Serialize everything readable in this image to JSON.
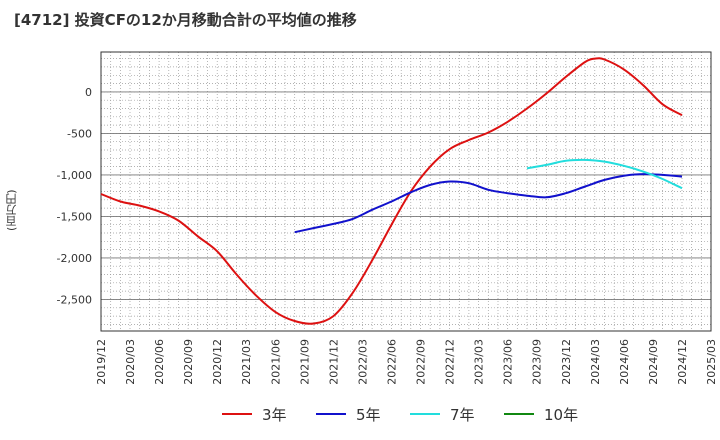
{
  "chart_data": {
    "type": "line",
    "title": "[4712]  投資CFの12か月移動合計の平均値の推移",
    "ylabel": "(百万円)",
    "xlabel": "",
    "ylim": [
      -2880,
      480
    ],
    "yticks": [
      0,
      -500,
      -1000,
      -1500,
      -2000,
      -2500
    ],
    "ytick_labels": [
      "0",
      "-500",
      "-1,000",
      "-1,500",
      "-2,000",
      "-2,500"
    ],
    "x_range": [
      "2019-12",
      "2025-03"
    ],
    "xtick_labels": [
      "2019/12",
      "2020/03",
      "2020/06",
      "2020/09",
      "2020/12",
      "2021/03",
      "2021/06",
      "2021/09",
      "2021/12",
      "2022/03",
      "2022/06",
      "2022/09",
      "2022/12",
      "2023/03",
      "2023/06",
      "2023/09",
      "2023/12",
      "2024/03",
      "2024/06",
      "2024/09",
      "2024/12",
      "2025/03"
    ],
    "grid": true,
    "legend_position": "bottom",
    "series": [
      {
        "name": "3年",
        "color": "#dd1111",
        "x": [
          "2019-12",
          "2020-02",
          "2020-04",
          "2020-06",
          "2020-08",
          "2020-10",
          "2020-12",
          "2021-02",
          "2021-04",
          "2021-06",
          "2021-08",
          "2021-10",
          "2021-12",
          "2022-02",
          "2022-04",
          "2022-06",
          "2022-08",
          "2022-10",
          "2022-12",
          "2023-02",
          "2023-04",
          "2023-06",
          "2023-08",
          "2023-10",
          "2023-12",
          "2024-02",
          "2024-03",
          "2024-04",
          "2024-06",
          "2024-08",
          "2024-10",
          "2024-12"
        ],
        "values": [
          -1230,
          -1320,
          -1370,
          -1440,
          -1550,
          -1740,
          -1920,
          -2200,
          -2450,
          -2650,
          -2760,
          -2790,
          -2700,
          -2420,
          -2030,
          -1600,
          -1200,
          -900,
          -690,
          -580,
          -490,
          -360,
          -200,
          -20,
          180,
          360,
          400,
          390,
          270,
          80,
          -150,
          -280
        ]
      },
      {
        "name": "5年",
        "color": "#1111cc",
        "x": [
          "2021-08",
          "2021-10",
          "2021-12",
          "2022-02",
          "2022-04",
          "2022-06",
          "2022-08",
          "2022-10",
          "2022-12",
          "2023-02",
          "2023-04",
          "2023-06",
          "2023-08",
          "2023-10",
          "2023-12",
          "2024-02",
          "2024-04",
          "2024-06",
          "2024-08",
          "2024-10",
          "2024-12"
        ],
        "values": [
          -1690,
          -1640,
          -1590,
          -1530,
          -1420,
          -1320,
          -1210,
          -1120,
          -1080,
          -1100,
          -1180,
          -1220,
          -1250,
          -1270,
          -1220,
          -1140,
          -1060,
          -1010,
          -990,
          -1000,
          -1020
        ]
      },
      {
        "name": "7年",
        "color": "#22dddd",
        "x": [
          "2023-08",
          "2023-10",
          "2023-12",
          "2024-02",
          "2024-04",
          "2024-06",
          "2024-08",
          "2024-10",
          "2024-12"
        ],
        "values": [
          -920,
          -880,
          -830,
          -820,
          -840,
          -890,
          -960,
          -1050,
          -1160
        ]
      },
      {
        "name": "10年",
        "color": "#118811",
        "x": [],
        "values": []
      }
    ]
  }
}
